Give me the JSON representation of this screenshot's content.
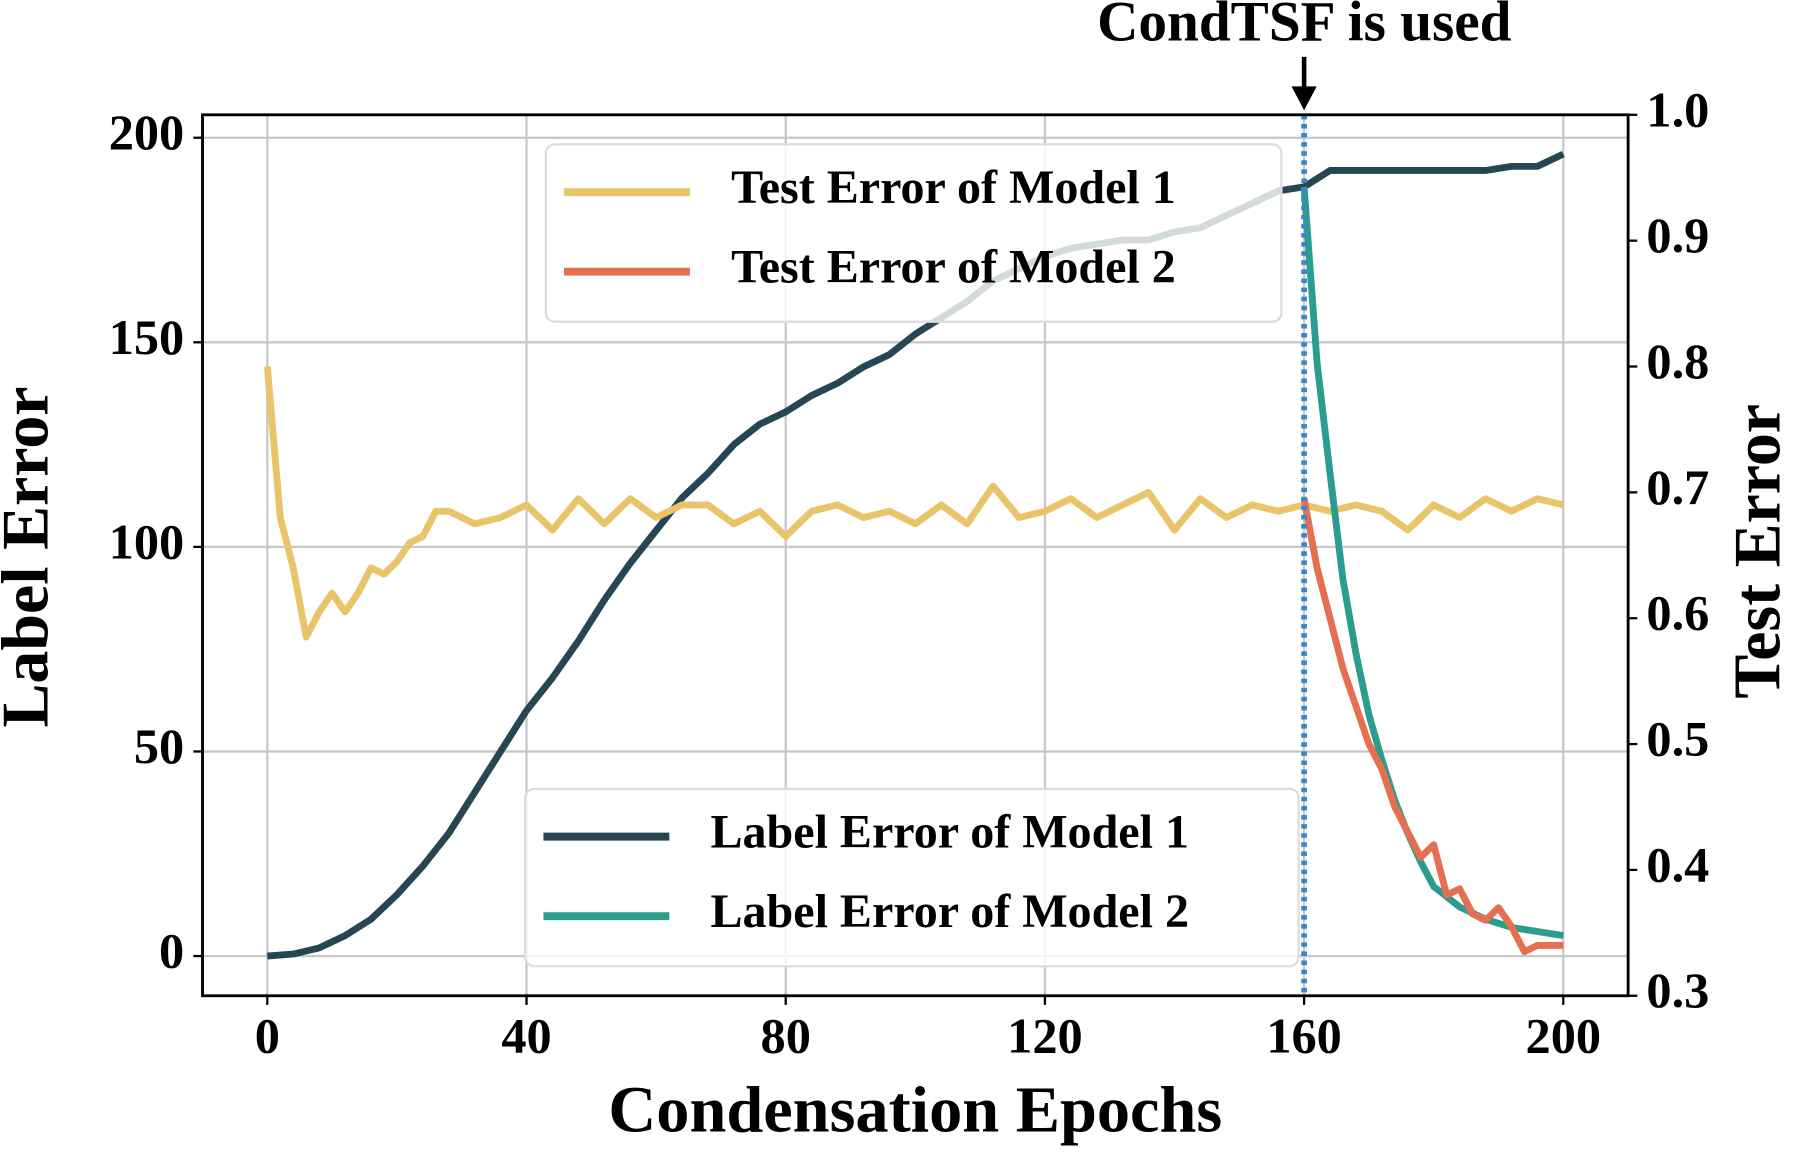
{
  "chart_data": {
    "type": "line",
    "xlabel": "Condensation Epochs",
    "ylabel": "Label Error",
    "y2label": "Test Error",
    "xlim": [
      -10,
      210
    ],
    "xticks": [
      0,
      40,
      80,
      120,
      160,
      200
    ],
    "ylim": [
      -9.7,
      205.6
    ],
    "yticks": [
      0,
      50,
      100,
      150,
      200
    ],
    "y2lim": [
      0.3,
      1.0
    ],
    "y2ticks": [
      {
        "value": 0.3,
        "label": "0.3"
      },
      {
        "value": 0.4,
        "label": "0.4"
      },
      {
        "value": 0.5,
        "label": "0.5"
      },
      {
        "value": 0.6,
        "label": "0.6"
      },
      {
        "value": 0.7,
        "label": "0.7"
      },
      {
        "value": 0.8,
        "label": "0.8"
      },
      {
        "value": 0.9,
        "label": "0.9"
      },
      {
        "value": 1.0,
        "label": "1.0"
      }
    ],
    "grid": true,
    "annotation": {
      "text": "CondTSF is used",
      "x": 160
    },
    "series": [
      {
        "name": "Label Error of Model 1",
        "color": "#264653",
        "axis": "y",
        "x": [
          0,
          4,
          8,
          12,
          16,
          20,
          24,
          28,
          32,
          36,
          40,
          44,
          48,
          52,
          56,
          60,
          64,
          68,
          72,
          76,
          80,
          84,
          88,
          92,
          96,
          100,
          104,
          108,
          112,
          116,
          120,
          124,
          128,
          132,
          136,
          140,
          144,
          148,
          152,
          156,
          160,
          164,
          168,
          172,
          176,
          180,
          184,
          188,
          192,
          196,
          200
        ],
        "values": [
          0,
          0.5,
          2,
          5,
          9,
          15,
          22,
          30,
          40,
          50,
          60,
          68,
          77,
          87,
          96,
          104,
          112,
          118,
          125,
          130,
          133,
          137,
          140,
          144,
          147,
          152,
          156,
          160,
          165,
          168,
          171,
          173,
          174,
          175,
          175,
          177,
          178,
          181,
          184,
          187,
          188,
          192,
          192,
          192,
          192,
          192,
          192,
          192,
          193,
          193,
          196
        ]
      },
      {
        "name": "Label Error of Model 2",
        "color": "#2a9d8f",
        "axis": "y",
        "x": [
          160,
          162,
          164,
          166,
          168,
          170,
          172,
          174,
          176,
          178,
          180,
          184,
          188,
          192,
          196,
          200
        ],
        "values": [
          188,
          145,
          118,
          92,
          74,
          59,
          48,
          38,
          30,
          23,
          17,
          12,
          9,
          7,
          6,
          5
        ]
      },
      {
        "name": "Test Error of Model 1",
        "color": "#e9c46a",
        "axis": "y2",
        "x": [
          0,
          2,
          4,
          6,
          8,
          10,
          12,
          14,
          16,
          18,
          20,
          22,
          24,
          26,
          28,
          32,
          36,
          40,
          44,
          48,
          52,
          56,
          60,
          64,
          68,
          72,
          76,
          80,
          84,
          88,
          92,
          96,
          100,
          104,
          108,
          112,
          116,
          120,
          124,
          128,
          132,
          136,
          140,
          144,
          148,
          152,
          156,
          160,
          164,
          168,
          172,
          176,
          180,
          184,
          188,
          192,
          196,
          200
        ],
        "values": [
          0.8,
          0.68,
          0.64,
          0.585,
          0.605,
          0.62,
          0.605,
          0.62,
          0.64,
          0.635,
          0.645,
          0.66,
          0.665,
          0.685,
          0.685,
          0.675,
          0.68,
          0.69,
          0.67,
          0.695,
          0.675,
          0.695,
          0.68,
          0.69,
          0.69,
          0.675,
          0.685,
          0.665,
          0.685,
          0.69,
          0.68,
          0.685,
          0.675,
          0.69,
          0.675,
          0.705,
          0.68,
          0.685,
          0.695,
          0.68,
          0.69,
          0.7,
          0.67,
          0.695,
          0.68,
          0.69,
          0.685,
          0.69,
          0.685,
          0.69,
          0.685,
          0.67,
          0.69,
          0.68,
          0.695,
          0.685,
          0.695,
          0.69
        ]
      },
      {
        "name": "Test Error of Model 2",
        "color": "#e76f51",
        "axis": "y2",
        "x": [
          160,
          162,
          164,
          166,
          168,
          170,
          172,
          174,
          176,
          178,
          180,
          182,
          184,
          186,
          188,
          190,
          192,
          194,
          196,
          198,
          200
        ],
        "values": [
          0.695,
          0.64,
          0.6,
          0.56,
          0.53,
          0.5,
          0.48,
          0.45,
          0.43,
          0.41,
          0.42,
          0.38,
          0.385,
          0.365,
          0.36,
          0.37,
          0.355,
          0.335,
          0.34,
          0.34,
          0.34
        ]
      }
    ]
  }
}
